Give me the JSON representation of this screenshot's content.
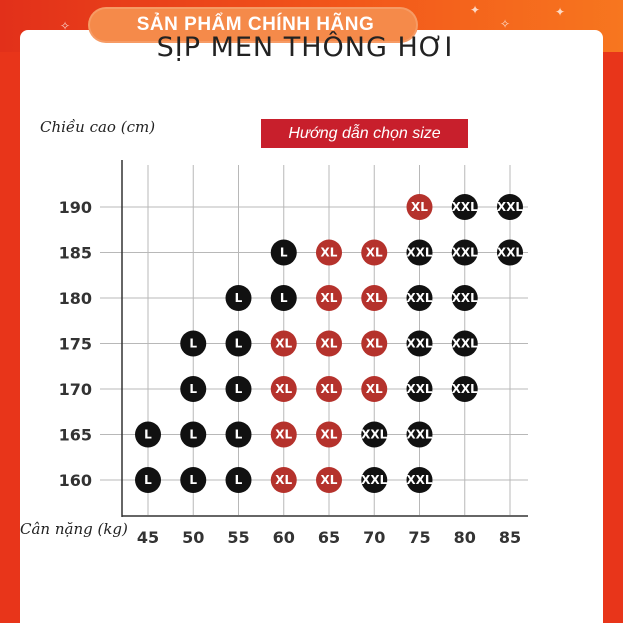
{
  "banner": {
    "text": "SẢN PHẨM CHÍNH HÃNG"
  },
  "header": {
    "title": "SỊP MEN THÔNG HƠI"
  },
  "guide_label": "Hướng dẫn chọn size",
  "colors": {
    "red_dot": "#b5322c",
    "black_dot": "#111111",
    "guide_bg": "#c81f2c",
    "frame": "#e8351a"
  },
  "chart_data": {
    "type": "scatter",
    "ylabel": "Chiều cao (cm)",
    "xlabel": "Cân nặng (kg)",
    "x_ticks": [
      45,
      50,
      55,
      60,
      65,
      70,
      75,
      80,
      85
    ],
    "y_ticks": [
      190,
      185,
      180,
      175,
      170,
      165,
      160
    ],
    "grid": true,
    "points": [
      {
        "weight": 75,
        "height": 190,
        "size": "XL",
        "color": "red"
      },
      {
        "weight": 80,
        "height": 190,
        "size": "XXL",
        "color": "black"
      },
      {
        "weight": 85,
        "height": 190,
        "size": "XXL",
        "color": "black"
      },
      {
        "weight": 60,
        "height": 185,
        "size": "L",
        "color": "black"
      },
      {
        "weight": 65,
        "height": 185,
        "size": "XL",
        "color": "red"
      },
      {
        "weight": 70,
        "height": 185,
        "size": "XL",
        "color": "red"
      },
      {
        "weight": 75,
        "height": 185,
        "size": "XXL",
        "color": "black"
      },
      {
        "weight": 80,
        "height": 185,
        "size": "XXL",
        "color": "black"
      },
      {
        "weight": 85,
        "height": 185,
        "size": "XXL",
        "color": "black"
      },
      {
        "weight": 55,
        "height": 180,
        "size": "L",
        "color": "black"
      },
      {
        "weight": 60,
        "height": 180,
        "size": "L",
        "color": "black"
      },
      {
        "weight": 65,
        "height": 180,
        "size": "XL",
        "color": "red"
      },
      {
        "weight": 70,
        "height": 180,
        "size": "XL",
        "color": "red"
      },
      {
        "weight": 75,
        "height": 180,
        "size": "XXL",
        "color": "black"
      },
      {
        "weight": 80,
        "height": 180,
        "size": "XXL",
        "color": "black"
      },
      {
        "weight": 50,
        "height": 175,
        "size": "L",
        "color": "black"
      },
      {
        "weight": 55,
        "height": 175,
        "size": "L",
        "color": "black"
      },
      {
        "weight": 60,
        "height": 175,
        "size": "XL",
        "color": "red"
      },
      {
        "weight": 65,
        "height": 175,
        "size": "XL",
        "color": "red"
      },
      {
        "weight": 70,
        "height": 175,
        "size": "XL",
        "color": "red"
      },
      {
        "weight": 75,
        "height": 175,
        "size": "XXL",
        "color": "black"
      },
      {
        "weight": 80,
        "height": 175,
        "size": "XXL",
        "color": "black"
      },
      {
        "weight": 50,
        "height": 170,
        "size": "L",
        "color": "black"
      },
      {
        "weight": 55,
        "height": 170,
        "size": "L",
        "color": "black"
      },
      {
        "weight": 60,
        "height": 170,
        "size": "XL",
        "color": "red"
      },
      {
        "weight": 65,
        "height": 170,
        "size": "XL",
        "color": "red"
      },
      {
        "weight": 70,
        "height": 170,
        "size": "XL",
        "color": "red"
      },
      {
        "weight": 75,
        "height": 170,
        "size": "XXL",
        "color": "black"
      },
      {
        "weight": 80,
        "height": 170,
        "size": "XXL",
        "color": "black"
      },
      {
        "weight": 45,
        "height": 165,
        "size": "L",
        "color": "black"
      },
      {
        "weight": 50,
        "height": 165,
        "size": "L",
        "color": "black"
      },
      {
        "weight": 55,
        "height": 165,
        "size": "L",
        "color": "black"
      },
      {
        "weight": 60,
        "height": 165,
        "size": "XL",
        "color": "red"
      },
      {
        "weight": 65,
        "height": 165,
        "size": "XL",
        "color": "red"
      },
      {
        "weight": 70,
        "height": 165,
        "size": "XXL",
        "color": "black"
      },
      {
        "weight": 75,
        "height": 165,
        "size": "XXL",
        "color": "black"
      },
      {
        "weight": 45,
        "height": 160,
        "size": "L",
        "color": "black"
      },
      {
        "weight": 50,
        "height": 160,
        "size": "L",
        "color": "black"
      },
      {
        "weight": 55,
        "height": 160,
        "size": "L",
        "color": "black"
      },
      {
        "weight": 60,
        "height": 160,
        "size": "XL",
        "color": "red"
      },
      {
        "weight": 65,
        "height": 160,
        "size": "XL",
        "color": "red"
      },
      {
        "weight": 70,
        "height": 160,
        "size": "XXL",
        "color": "black"
      },
      {
        "weight": 75,
        "height": 160,
        "size": "XXL",
        "color": "black"
      }
    ]
  }
}
